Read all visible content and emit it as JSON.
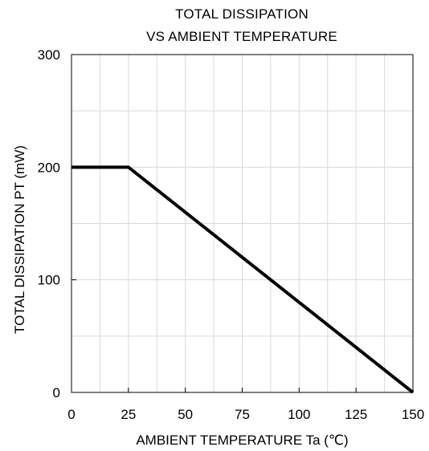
{
  "chart_data": {
    "type": "line",
    "title": [
      "TOTAL DISSIPATION",
      "VS AMBIENT TEMPERATURE"
    ],
    "xlabel": "AMBIENT TEMPERATURE  Ta (℃)",
    "ylabel": "TOTAL DISSIPATION  PT (mW)",
    "xlim": [
      0,
      150
    ],
    "ylim": [
      0,
      300
    ],
    "x_ticks": [
      0,
      25,
      50,
      75,
      100,
      125,
      150
    ],
    "x_tick_labels": [
      "0",
      "25",
      "50",
      "75",
      "100",
      "125",
      "150"
    ],
    "y_ticks": [
      0,
      100,
      200,
      300
    ],
    "y_tick_labels": [
      "0",
      "100",
      "200",
      "300"
    ],
    "grid": true,
    "legend": "none",
    "series": [
      {
        "x": [
          0,
          25,
          150
        ],
        "y": [
          200,
          200,
          0
        ],
        "color": "#000000"
      }
    ]
  },
  "colors": {
    "line": "#000000",
    "grid": "#d9d9d9",
    "frame": "#000000",
    "background": "#ffffff"
  }
}
